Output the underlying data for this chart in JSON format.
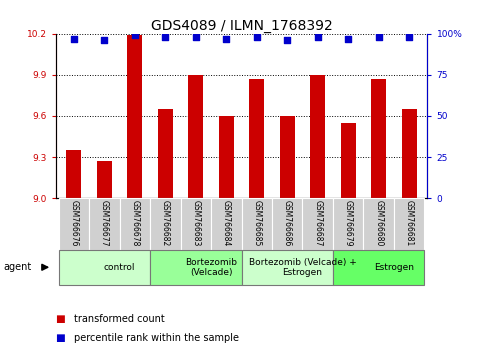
{
  "title": "GDS4089 / ILMN_1768392",
  "samples": [
    "GSM766676",
    "GSM766677",
    "GSM766678",
    "GSM766682",
    "GSM766683",
    "GSM766684",
    "GSM766685",
    "GSM766686",
    "GSM766687",
    "GSM766679",
    "GSM766680",
    "GSM766681"
  ],
  "bar_values": [
    9.35,
    9.27,
    10.19,
    9.65,
    9.9,
    9.6,
    9.87,
    9.6,
    9.9,
    9.55,
    9.87,
    9.65
  ],
  "percentile_values": [
    97,
    96,
    99,
    98,
    98,
    97,
    98,
    96,
    98,
    97,
    98,
    98
  ],
  "bar_color": "#cc0000",
  "dot_color": "#0000cc",
  "ymin": 9.0,
  "ymax": 10.2,
  "y_ticks": [
    9.0,
    9.3,
    9.6,
    9.9,
    10.2
  ],
  "y2min": 0,
  "y2max": 100,
  "y2_ticks": [
    0,
    25,
    50,
    75,
    100
  ],
  "y2_ticklabels": [
    "0",
    "25",
    "50",
    "75",
    "100%"
  ],
  "groups": [
    {
      "label": "control",
      "start": 0,
      "end": 3,
      "color": "#ccffcc"
    },
    {
      "label": "Bortezomib\n(Velcade)",
      "start": 3,
      "end": 6,
      "color": "#99ff99"
    },
    {
      "label": "Bortezomib (Velcade) +\nEstrogen",
      "start": 6,
      "end": 9,
      "color": "#ccffcc"
    },
    {
      "label": "Estrogen",
      "start": 9,
      "end": 12,
      "color": "#66ff66"
    }
  ],
  "legend_items": [
    {
      "color": "#cc0000",
      "label": "transformed count"
    },
    {
      "color": "#0000cc",
      "label": "percentile rank within the sample"
    }
  ],
  "bar_width": 0.5,
  "dot_size": 25,
  "title_fontsize": 10,
  "tick_fontsize": 6.5,
  "sample_fontsize": 5.5,
  "group_fontsize": 6.5,
  "legend_fontsize": 7
}
